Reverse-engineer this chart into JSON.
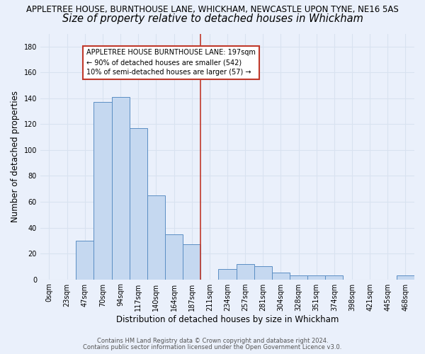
{
  "title_line1": "APPLETREE HOUSE, BURNTHOUSE LANE, WHICKHAM, NEWCASTLE UPON TYNE, NE16 5AS",
  "title_line2": "Size of property relative to detached houses in Whickham",
  "xlabel": "Distribution of detached houses by size in Whickham",
  "ylabel": "Number of detached properties",
  "categories": [
    "0sqm",
    "23sqm",
    "47sqm",
    "70sqm",
    "94sqm",
    "117sqm",
    "140sqm",
    "164sqm",
    "187sqm",
    "211sqm",
    "234sqm",
    "257sqm",
    "281sqm",
    "304sqm",
    "328sqm",
    "351sqm",
    "374sqm",
    "398sqm",
    "421sqm",
    "445sqm",
    "468sqm"
  ],
  "values": [
    0,
    0,
    30,
    137,
    141,
    117,
    65,
    35,
    27,
    0,
    8,
    12,
    10,
    5,
    3,
    3,
    3,
    0,
    0,
    0,
    3
  ],
  "bar_color": "#c5d8f0",
  "bar_edge_color": "#5b8ec4",
  "vline_x_idx": 9,
  "vline_color": "#c0392b",
  "annotation_text": "APPLETREE HOUSE BURNTHOUSE LANE: 197sqm\n← 90% of detached houses are smaller (542)\n10% of semi-detached houses are larger (57) →",
  "annotation_box_color": "#ffffff",
  "annotation_box_edge": "#c0392b",
  "footnote1": "Contains HM Land Registry data © Crown copyright and database right 2024.",
  "footnote2": "Contains public sector information licensed under the Open Government Licence v3.0.",
  "ylim": [
    0,
    190
  ],
  "yticks": [
    0,
    20,
    40,
    60,
    80,
    100,
    120,
    140,
    160,
    180
  ],
  "bg_color": "#eaf0fb",
  "grid_color": "#d8e2f0",
  "title1_fontsize": 8.5,
  "title2_fontsize": 10.5,
  "tick_fontsize": 7,
  "label_fontsize": 8.5,
  "footnote_fontsize": 6.0
}
